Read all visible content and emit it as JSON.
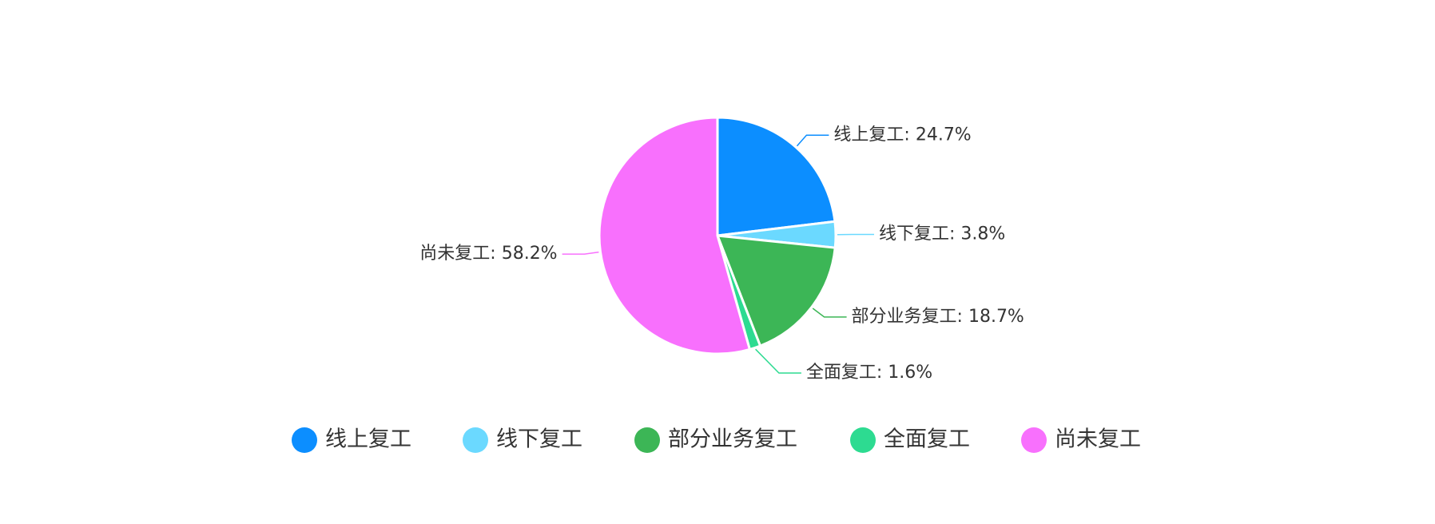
{
  "chart_data": {
    "type": "pie",
    "slices": [
      {
        "name": "线上复工",
        "value": 24.7,
        "label": "线上复工: 24.7%",
        "color": "#0C8EFF"
      },
      {
        "name": "线下复工",
        "value": 3.8,
        "label": "线下复工: 3.8%",
        "color": "#6BD9FF"
      },
      {
        "name": "部分业务复工",
        "value": 18.7,
        "label": "部分业务复工: 18.7%",
        "color": "#3CB656"
      },
      {
        "name": "全面复工",
        "value": 1.6,
        "label": "全面复工: 1.6%",
        "color": "#2DDB91"
      },
      {
        "name": "尚未复工",
        "value": 58.2,
        "label": "尚未复工: 58.2%",
        "color": "#F870FD"
      }
    ],
    "legend_position": "bottom"
  }
}
